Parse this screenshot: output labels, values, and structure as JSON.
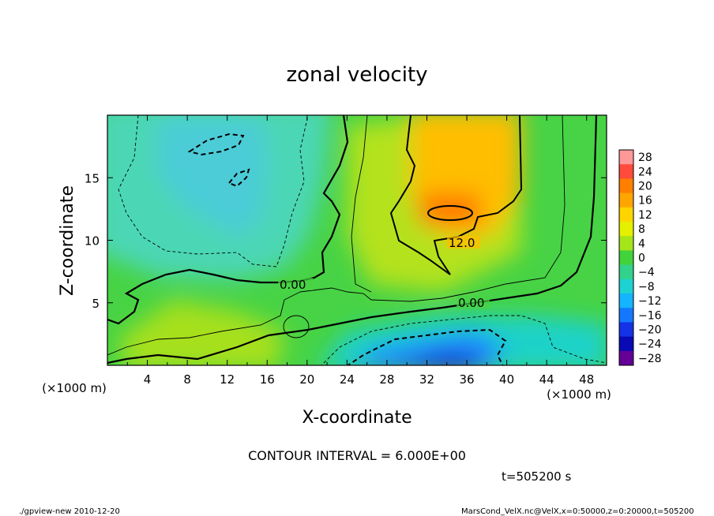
{
  "chart_data": {
    "type": "heatmap",
    "title": "zonal velocity",
    "xlabel": "X-coordinate",
    "ylabel": "Z-coordinate",
    "x_unit_label": "(×1000 m)",
    "y_unit_label": "(×1000 m)",
    "xlim": [
      0,
      50
    ],
    "ylim": [
      0,
      20
    ],
    "x_ticks": [
      4,
      8,
      12,
      16,
      20,
      24,
      28,
      32,
      36,
      40,
      44,
      48
    ],
    "y_ticks": [
      5,
      10,
      15
    ],
    "x_tick_labels": [
      "4",
      "8",
      "12",
      "16",
      "20",
      "24",
      "28",
      "32",
      "36",
      "40",
      "44",
      "48"
    ],
    "y_tick_labels": [
      "5",
      "10",
      "15"
    ],
    "colorbar": {
      "levels": [
        28,
        24,
        20,
        16,
        12,
        8,
        4,
        0,
        -4,
        -8,
        -12,
        -16,
        -20,
        -24,
        -28
      ],
      "labels": [
        "28",
        "24",
        "20",
        "16",
        "12",
        "8",
        "4",
        "0",
        "−4",
        "−8",
        "−12",
        "−16",
        "−20",
        "−24",
        "−28"
      ],
      "colors": [
        "#ff9999",
        "#ff4b3c",
        "#ff7f00",
        "#ffa500",
        "#ffd500",
        "#e4f000",
        "#a6e51a",
        "#41d23c",
        "#32d28c",
        "#1ed2d2",
        "#14b4ff",
        "#1478ff",
        "#1432e6",
        "#0a0ab4",
        "#640096"
      ]
    },
    "contour_labels": [
      {
        "text": "0.00",
        "x": 18.5,
        "z": 6.6
      },
      {
        "text": "12.0",
        "x": 35.5,
        "z": 9.9
      },
      {
        "text": "0.00",
        "x": 36.5,
        "z": 5.0
      }
    ],
    "features": [
      {
        "kind": "max",
        "value": 18,
        "x": 34.5,
        "z": 12.3
      },
      {
        "kind": "min",
        "value": -20,
        "x": 32,
        "z": 1
      },
      {
        "kind": "min",
        "value": -14,
        "x": 10.5,
        "z": 17.5
      },
      {
        "kind": "min",
        "value": -14,
        "x": 13,
        "z": 15
      }
    ]
  },
  "annotations": {
    "contour_interval": "CONTOUR INTERVAL = 6.000E+00",
    "time": "t=505200 s",
    "footer_left": "./gpview-new  2010-12-20",
    "footer_right": "MarsCond_VelX.nc@VelX,x=0:50000,z=0:20000,t=505200"
  }
}
